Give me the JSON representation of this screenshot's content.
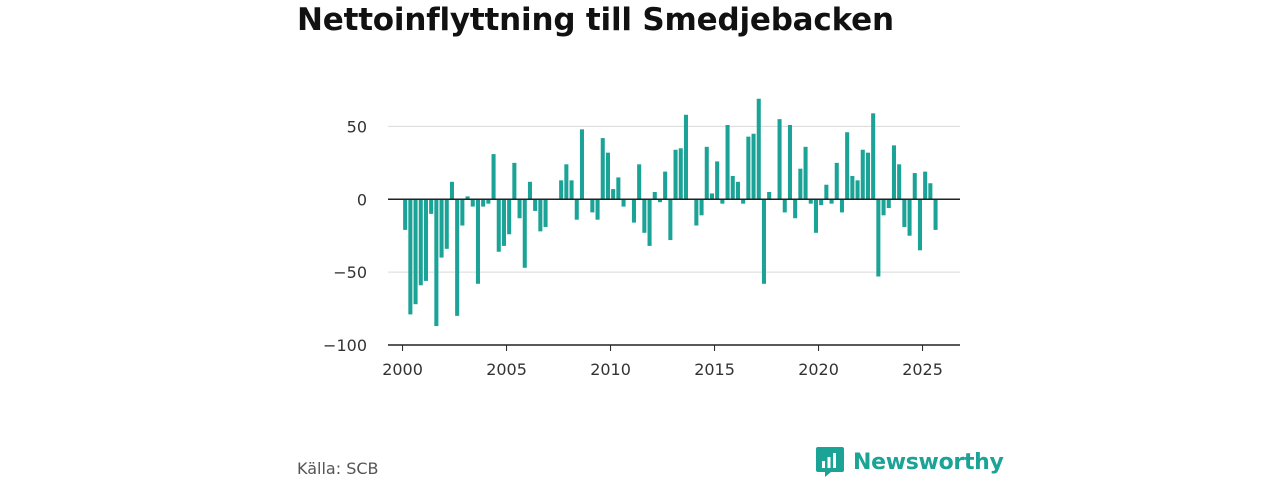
{
  "title": "Nettoinflyttning till Smedjebacken",
  "source": "Källa: SCB",
  "brand": {
    "name": "Newsworthy",
    "icon": "bar-chart-icon"
  },
  "colors": {
    "bar": "#1aa396",
    "grid": "#d9d9d9",
    "zero_line": "#222222",
    "brand": "#1aa396"
  },
  "chart_data": {
    "type": "bar",
    "title": "Nettoinflyttning till Smedjebacken",
    "xlabel": "",
    "ylabel": "",
    "ylim": [
      -100,
      75
    ],
    "xlim": [
      1999.3,
      2026.8
    ],
    "yticks": [
      50,
      0,
      -50,
      -100
    ],
    "ytick_labels": [
      "50",
      "0",
      "−50",
      "−100"
    ],
    "xticks": [
      "2000",
      "2005",
      "2010",
      "2015",
      "2020",
      "2025"
    ],
    "grid": true,
    "frequency": "quarterly",
    "start": "2000-Q1",
    "values": [
      -21,
      -79,
      -72,
      -59,
      -56,
      -10,
      -87,
      -40,
      -34,
      12,
      -80,
      -18,
      2,
      -5,
      -58,
      -5,
      -3,
      31,
      -36,
      -32,
      -24,
      25,
      -13,
      -47,
      12,
      -8,
      -22,
      -19,
      0,
      0,
      13,
      24,
      13,
      -14,
      48,
      0,
      -9,
      -14,
      42,
      32,
      7,
      15,
      -5,
      0,
      -16,
      24,
      -23,
      -32,
      5,
      -2,
      19,
      -28,
      34,
      35,
      58,
      0,
      -18,
      -11,
      36,
      4,
      26,
      -3,
      51,
      16,
      12,
      -3,
      43,
      45,
      69,
      -58,
      5,
      0,
      55,
      -9,
      51,
      -13,
      21,
      36,
      -3,
      -23,
      -4,
      10,
      -3,
      25,
      -9,
      46,
      16,
      13,
      34,
      32,
      59,
      -53,
      -11,
      -6,
      37,
      24,
      -19,
      -25,
      18,
      -35,
      19,
      11,
      -21
    ]
  }
}
